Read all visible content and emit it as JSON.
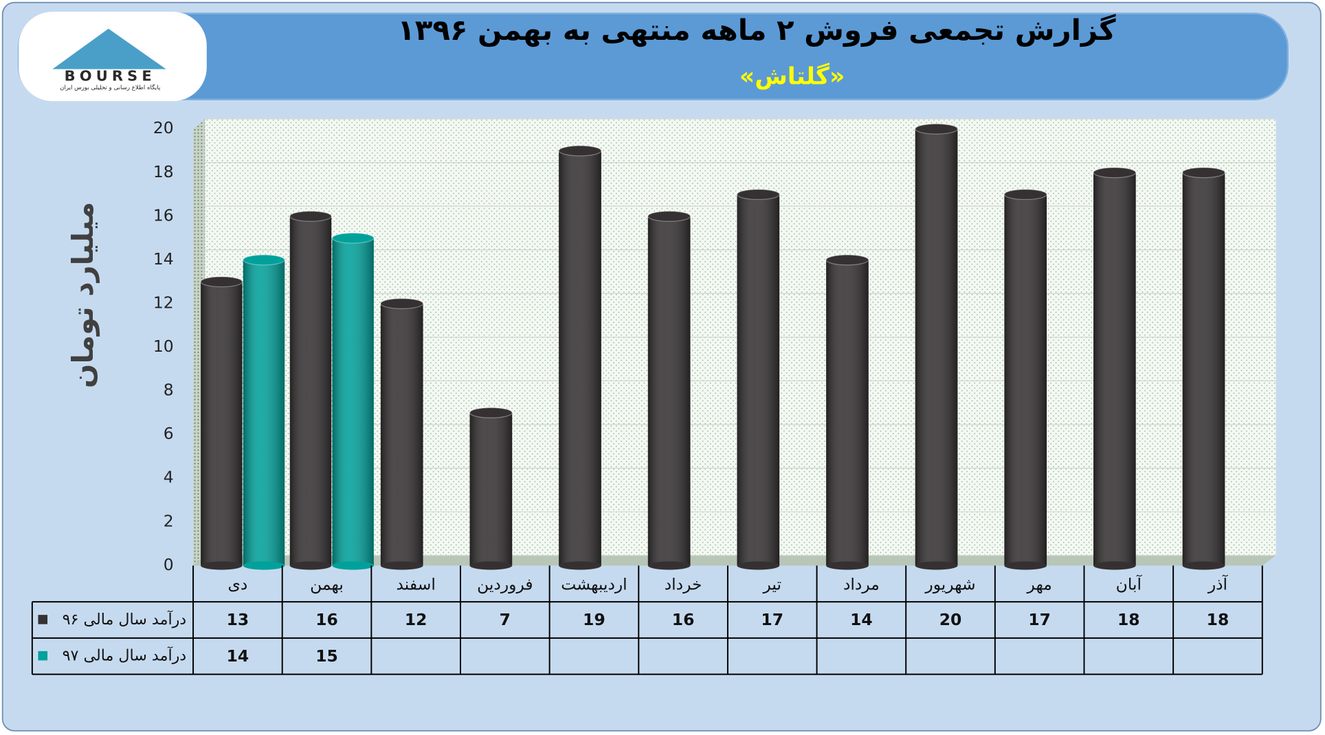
{
  "logo": {
    "name": "BOURSE",
    "tagline": "پایگاه اطلاع رسانی و تحلیلی بورس ایران"
  },
  "chart_data": {
    "type": "bar",
    "title": "گزارش تجمعی فروش ۲ ماهه منتهی به بهمن ۱۳۹۶",
    "subtitle": "«گلتاش»",
    "y_label": "میلیارد تومان",
    "categories": [
      "دی",
      "بهمن",
      "اسفند",
      "فروردین",
      "اردیبهشت",
      "خرداد",
      "تیر",
      "مرداد",
      "شهریور",
      "مهر",
      "آبان",
      "آذر"
    ],
    "series": [
      {
        "name": "درآمد سال مالی ۹۶",
        "color": "#353132",
        "values": [
          13,
          16,
          12,
          7,
          19,
          16,
          17,
          14,
          20,
          17,
          18,
          18
        ]
      },
      {
        "name": "درآمد سال مالی ۹۷",
        "color": "#00a19b",
        "values": [
          14,
          15,
          null,
          null,
          null,
          null,
          null,
          null,
          null,
          null,
          null,
          null
        ]
      }
    ],
    "ylim": [
      0,
      20
    ],
    "yticks": [
      0,
      2,
      4,
      6,
      8,
      10,
      12,
      14,
      16,
      18,
      20
    ],
    "grid": true
  }
}
